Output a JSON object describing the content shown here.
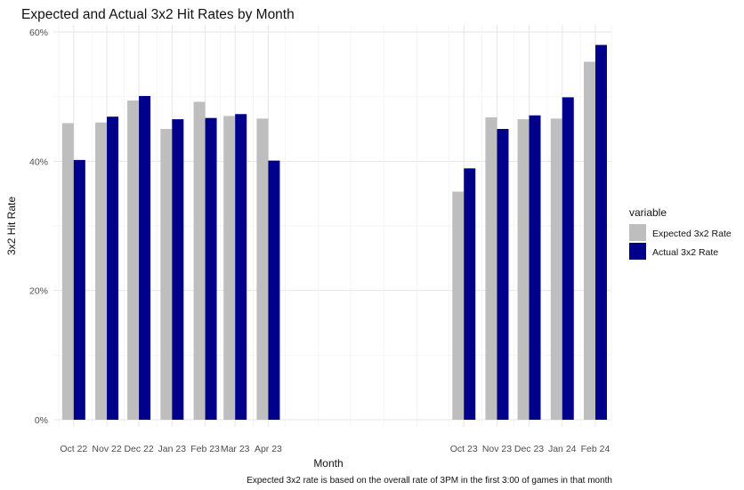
{
  "chart_data": {
    "type": "bar",
    "title": "Expected and Actual 3x2 Hit Rates by Month",
    "xlabel": "Month",
    "ylabel": "3x2 Hit Rate",
    "caption": "Expected 3x2 rate is based on the overall rate of 3PM in the first 3:00 of games in that month",
    "ylim": [
      0,
      0.6
    ],
    "yticks": [
      0,
      0.2,
      0.4,
      0.6
    ],
    "ytick_labels": [
      "0%",
      "20%",
      "40%",
      "60%"
    ],
    "x_axis": "date",
    "xlim": [
      "2022-09-26",
      "2024-03-01"
    ],
    "grid": true,
    "legend": {
      "title": "variable",
      "position": "right"
    },
    "categories": [
      "Oct 22",
      "Nov 22",
      "Dec 22",
      "Jan 23",
      "Feb 23",
      "Mar 23",
      "Apr 23",
      "Oct 23",
      "Nov 23",
      "Dec 23",
      "Jan 24",
      "Feb 24"
    ],
    "category_dates": [
      "2022-10-15",
      "2022-11-15",
      "2022-12-15",
      "2023-01-15",
      "2023-02-15",
      "2023-03-15",
      "2023-04-15",
      "2023-10-15",
      "2023-11-15",
      "2023-12-15",
      "2024-01-15",
      "2024-02-15"
    ],
    "series": [
      {
        "name": "Expected 3x2 Rate",
        "color": "#bebebe",
        "values": [
          0.459,
          0.46,
          0.494,
          0.45,
          0.492,
          0.47,
          0.466,
          0.353,
          0.468,
          0.465,
          0.466,
          0.554
        ]
      },
      {
        "name": "Actual 3x2 Rate",
        "color": "#00008b",
        "values": [
          0.402,
          0.469,
          0.501,
          0.465,
          0.467,
          0.473,
          0.401,
          0.389,
          0.45,
          0.471,
          0.499,
          0.58
        ]
      }
    ]
  }
}
